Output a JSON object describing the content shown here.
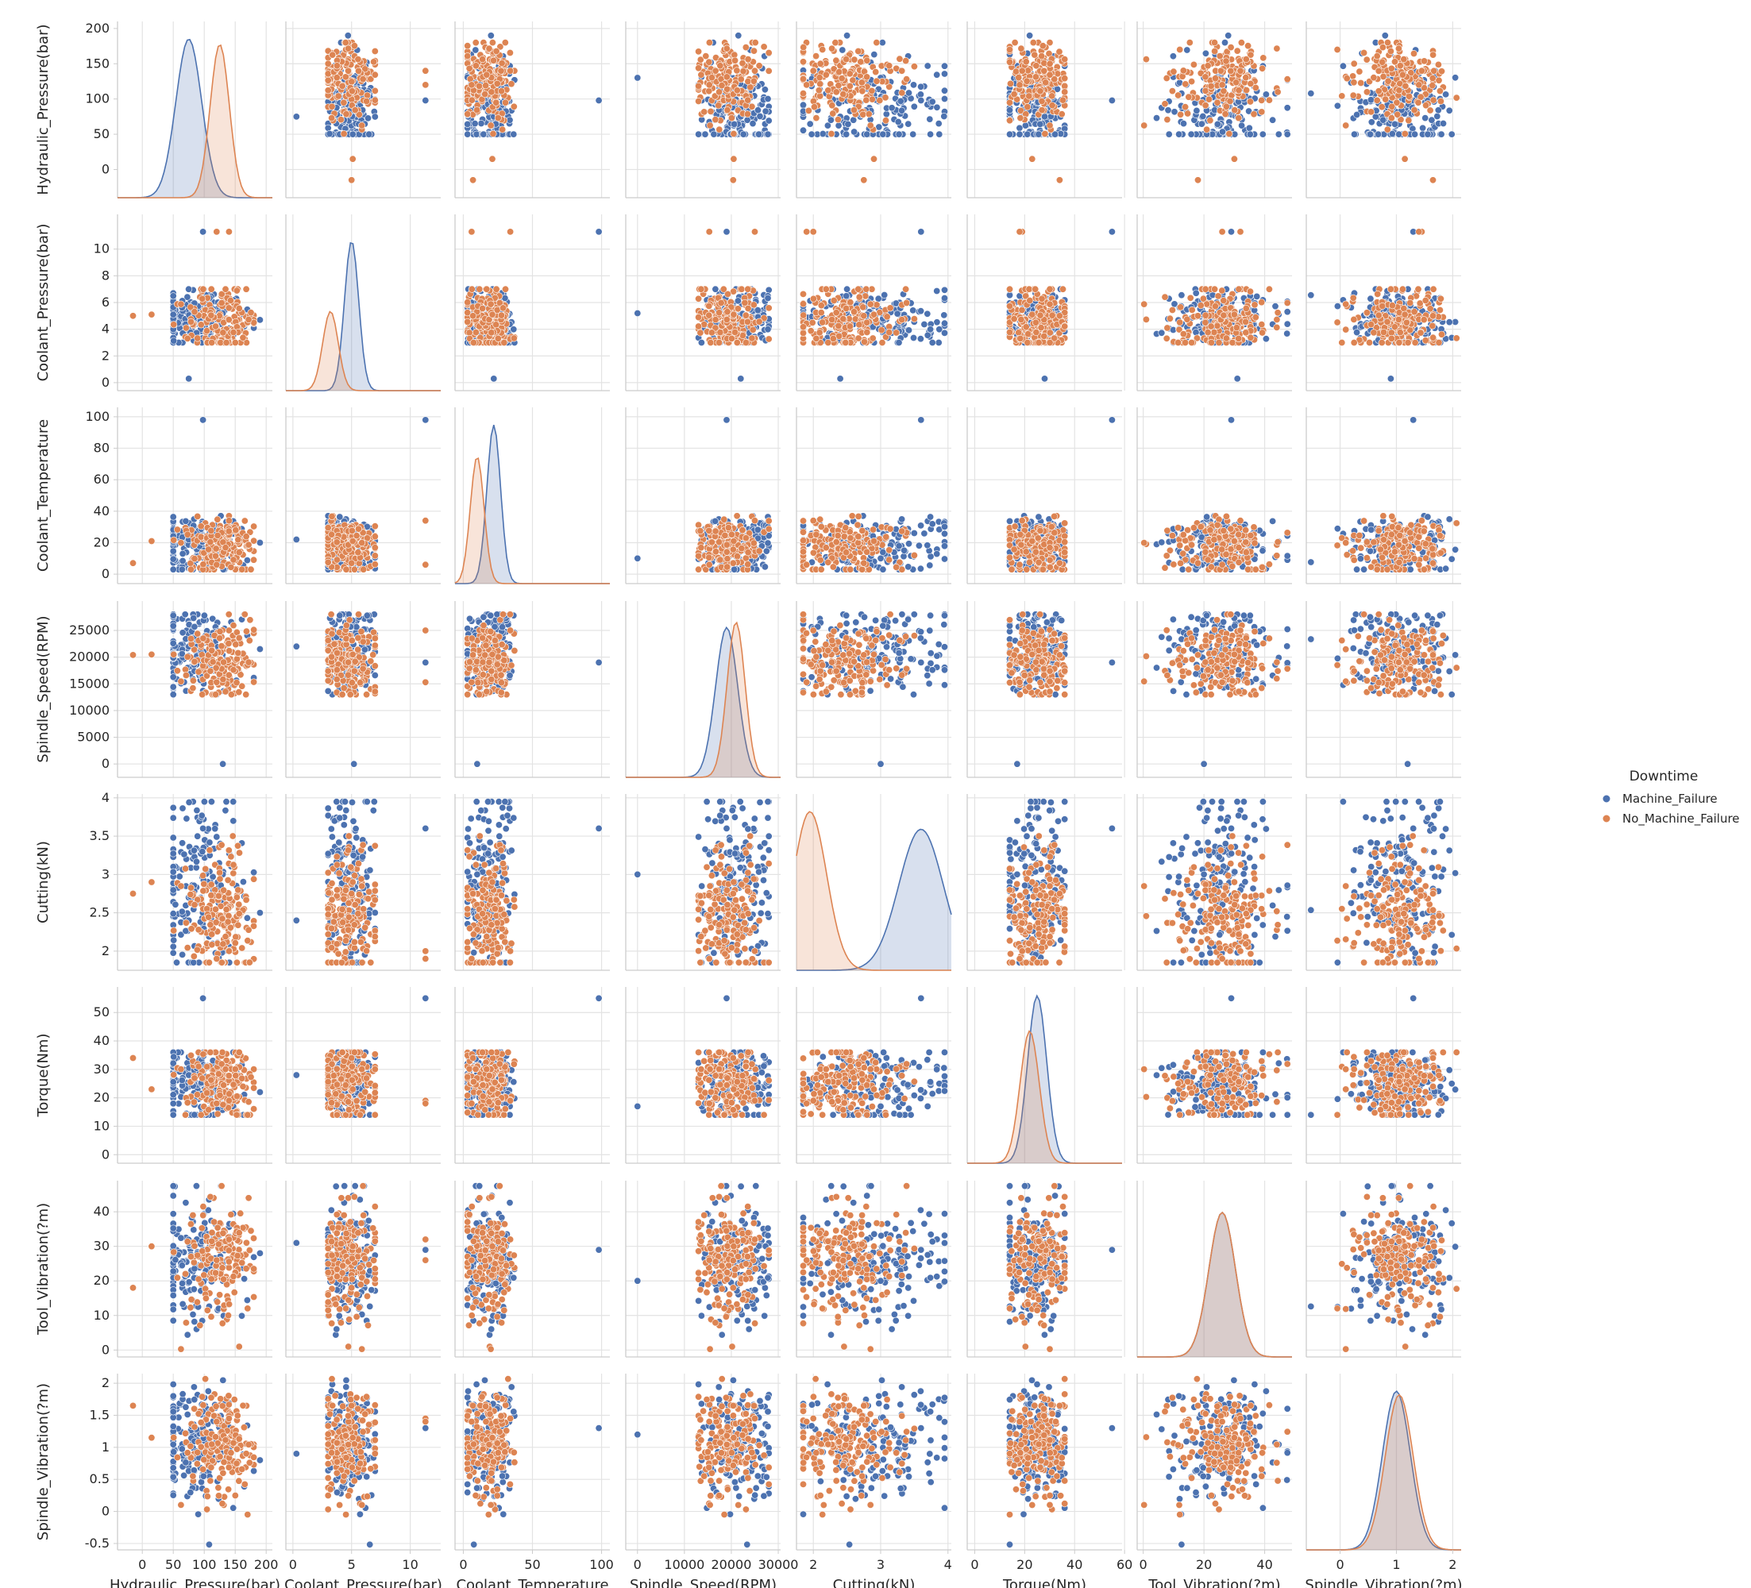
{
  "chart_data": {
    "type": "scatter",
    "variables": [
      "Hydraulic_Pressure(bar)",
      "Coolant_Pressure(bar)",
      "Coolant_Temperature",
      "Spindle_Speed(RPM)",
      "Cutting(kN)",
      "Torque(Nm)",
      "Tool_Vibration(?m)",
      "Spindle_Vibration(?m)"
    ],
    "axes": [
      {
        "label": "Hydraulic_Pressure(bar)",
        "range": [
          -40,
          210
        ],
        "ticks": [
          0,
          50,
          100,
          150,
          200
        ]
      },
      {
        "label": "Coolant_Pressure(bar)",
        "range": [
          -0.6,
          12.6
        ],
        "ticks": [
          0,
          2,
          4,
          6,
          8,
          10
        ],
        "xticks": [
          0,
          5,
          10
        ]
      },
      {
        "label": "Coolant_Temperature",
        "range": [
          -6,
          106
        ],
        "ticks": [
          0,
          20,
          40,
          60,
          80,
          100
        ],
        "xticks": [
          0,
          50,
          100
        ]
      },
      {
        "label": "Spindle_Speed(RPM)",
        "range": [
          -2500,
          30500
        ],
        "ticks": [
          0,
          5000,
          10000,
          15000,
          20000,
          25000
        ],
        "xticks": [
          0,
          10000,
          20000,
          30000
        ]
      },
      {
        "label": "Cutting(kN)",
        "range": [
          1.75,
          4.05
        ],
        "ticks": [
          2.0,
          2.5,
          3.0,
          3.5,
          4.0
        ],
        "xticks": [
          2,
          3,
          4
        ]
      },
      {
        "label": "Torque(Nm)",
        "range": [
          -3,
          59
        ],
        "ticks": [
          0,
          10,
          20,
          30,
          40,
          50
        ],
        "xticks": [
          0,
          20,
          40,
          60
        ]
      },
      {
        "label": "Tool_Vibration(?m)",
        "range": [
          -2,
          49
        ],
        "ticks": [
          0,
          10,
          20,
          30,
          40
        ],
        "xticks": [
          0,
          20,
          40
        ]
      },
      {
        "label": "Spindle_Vibration(?m)",
        "range": [
          -0.6,
          2.15
        ],
        "ticks": [
          -0.5,
          0.0,
          0.5,
          1.0,
          1.5,
          2.0
        ],
        "xticks": [
          0,
          1,
          2
        ]
      }
    ],
    "hue": "Downtime",
    "series": [
      {
        "name": "Machine_Failure",
        "color": "#4c72b0",
        "centers": [
          90,
          4.9,
          18,
          21000,
          2.9,
          24,
          25,
          1.0
        ],
        "spreads": [
          38,
          1.1,
          9,
          4300,
          0.6,
          7,
          8,
          0.45
        ],
        "kde_peaks": [
          [
            75,
            0.9
          ],
          [
            5,
            0.85
          ],
          [
            22,
            0.9
          ],
          [
            19000,
            0.85
          ],
          [
            3.6,
            0.8
          ],
          [
            25,
            0.95
          ],
          [
            26,
            0.82
          ],
          [
            1.0,
            0.9
          ]
        ],
        "outliers": [
          [
            190,
            4.7,
            20,
            21500,
            2.5,
            22,
            28,
            0.8
          ],
          [
            75,
            0.3,
            22,
            22000,
            2.4,
            28,
            31,
            0.9
          ],
          [
            98,
            11.3,
            98,
            19000,
            3.6,
            55,
            29,
            1.3
          ],
          [
            130,
            5.2,
            10,
            0,
            3.0,
            17,
            20,
            1.2
          ]
        ]
      },
      {
        "name": "No_Machine_Failure",
        "color": "#dd8452",
        "centers": [
          128,
          4.7,
          19,
          19000,
          2.5,
          26,
          26,
          1.05
        ],
        "spreads": [
          28,
          1.2,
          9,
          3500,
          0.45,
          7,
          8,
          0.45
        ],
        "kde_peaks": [
          [
            125,
            0.87
          ],
          [
            3.2,
            0.45
          ],
          [
            10,
            0.72
          ],
          [
            21000,
            0.88
          ],
          [
            1.95,
            0.9
          ],
          [
            22,
            0.75
          ],
          [
            26,
            0.82
          ],
          [
            1.05,
            0.88
          ]
        ],
        "outliers": [
          [
            -15,
            5.0,
            7,
            20400,
            2.75,
            34,
            18,
            1.65
          ],
          [
            15,
            5.1,
            21,
            20500,
            2.9,
            23,
            30,
            1.15
          ],
          [
            140,
            11.3,
            34,
            25000,
            2.0,
            19,
            32,
            1.45
          ],
          [
            120,
            11.3,
            6,
            15300,
            1.9,
            18,
            26,
            1.4
          ]
        ]
      }
    ],
    "grid": true,
    "legend_position": "right"
  }
}
